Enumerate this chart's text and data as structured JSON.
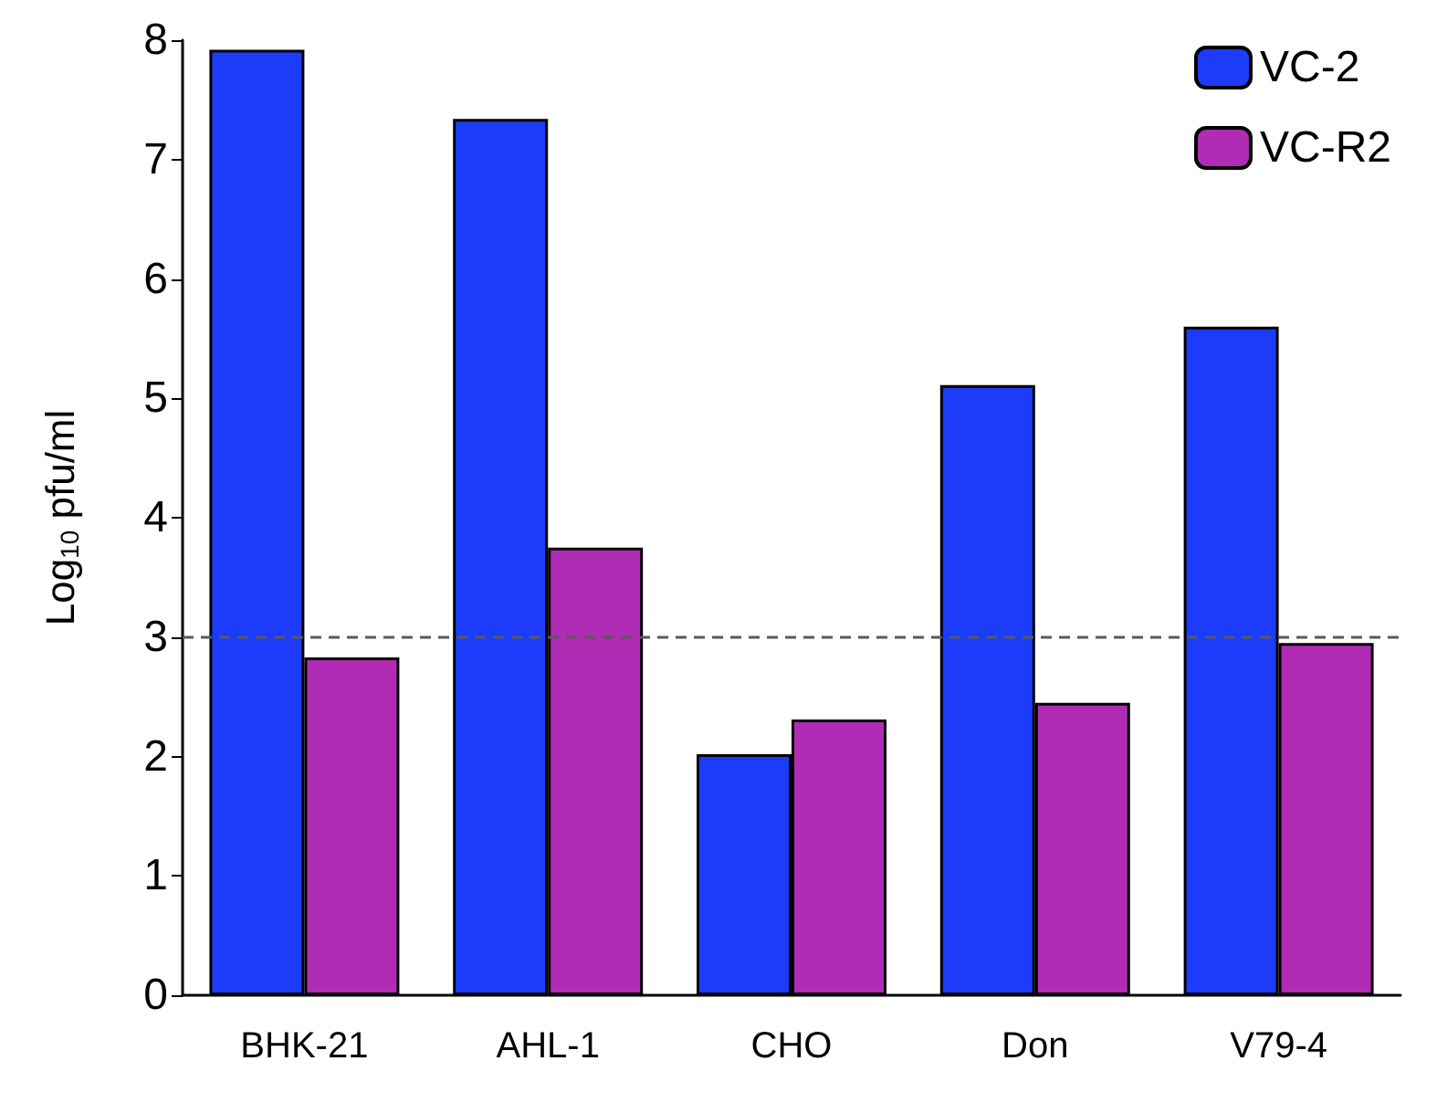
{
  "chart_data": {
    "type": "bar",
    "ylabel": "Log$_{10}$ pfu/ml",
    "categories": [
      "BHK-21",
      "AHL-1",
      "CHO",
      "Don",
      "V79-4"
    ],
    "series": [
      {
        "name": "VC-2",
        "color": "#1c3cfa",
        "values": [
          7.92,
          7.34,
          2.02,
          5.11,
          5.6
        ]
      },
      {
        "name": "VC-R2",
        "color": "#b02cb4",
        "values": [
          2.83,
          3.75,
          2.31,
          2.45,
          2.95
        ]
      }
    ],
    "ylim": [
      0,
      8
    ],
    "yticks": [
      0,
      1,
      2,
      3,
      4,
      5,
      6,
      7,
      8
    ],
    "grid": false,
    "legend": "top right",
    "ref_lines": [
      {
        "axis": "y",
        "value": 3,
        "color": "#595959",
        "line_style": "dashed"
      }
    ]
  }
}
